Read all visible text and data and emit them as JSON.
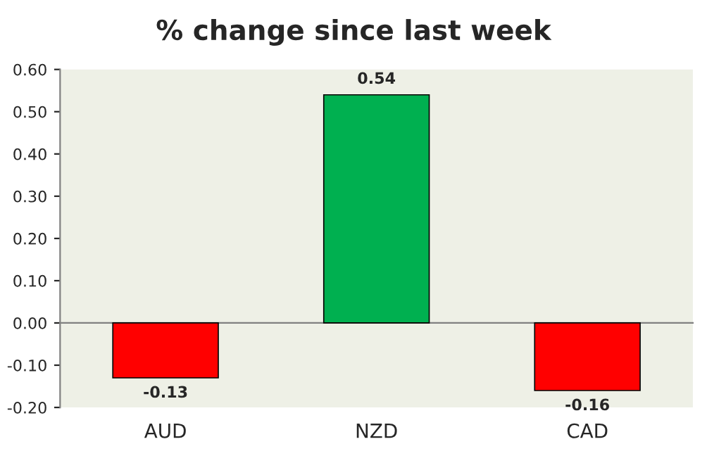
{
  "chart_data": {
    "type": "bar",
    "title": "% change since last week",
    "categories": [
      "AUD",
      "NZD",
      "CAD"
    ],
    "values": [
      -0.13,
      0.54,
      -0.16
    ],
    "colors": [
      "#ff0000",
      "#00b050",
      "#ff0000"
    ],
    "ylim": [
      -0.2,
      0.6
    ],
    "yticks": [
      {
        "value": -0.2,
        "label": "-0.20"
      },
      {
        "value": -0.1,
        "label": "-0.10"
      },
      {
        "value": 0,
        "label": "0.00"
      },
      {
        "value": 0.1,
        "label": "0.10"
      },
      {
        "value": 0.2,
        "label": "0.20"
      },
      {
        "value": 0.3,
        "label": "0.30"
      },
      {
        "value": 0.4,
        "label": "0.40"
      },
      {
        "value": 0.5,
        "label": "0.50"
      },
      {
        "value": 0.6,
        "label": "0.60"
      }
    ],
    "data_labels": true,
    "legend": false
  }
}
